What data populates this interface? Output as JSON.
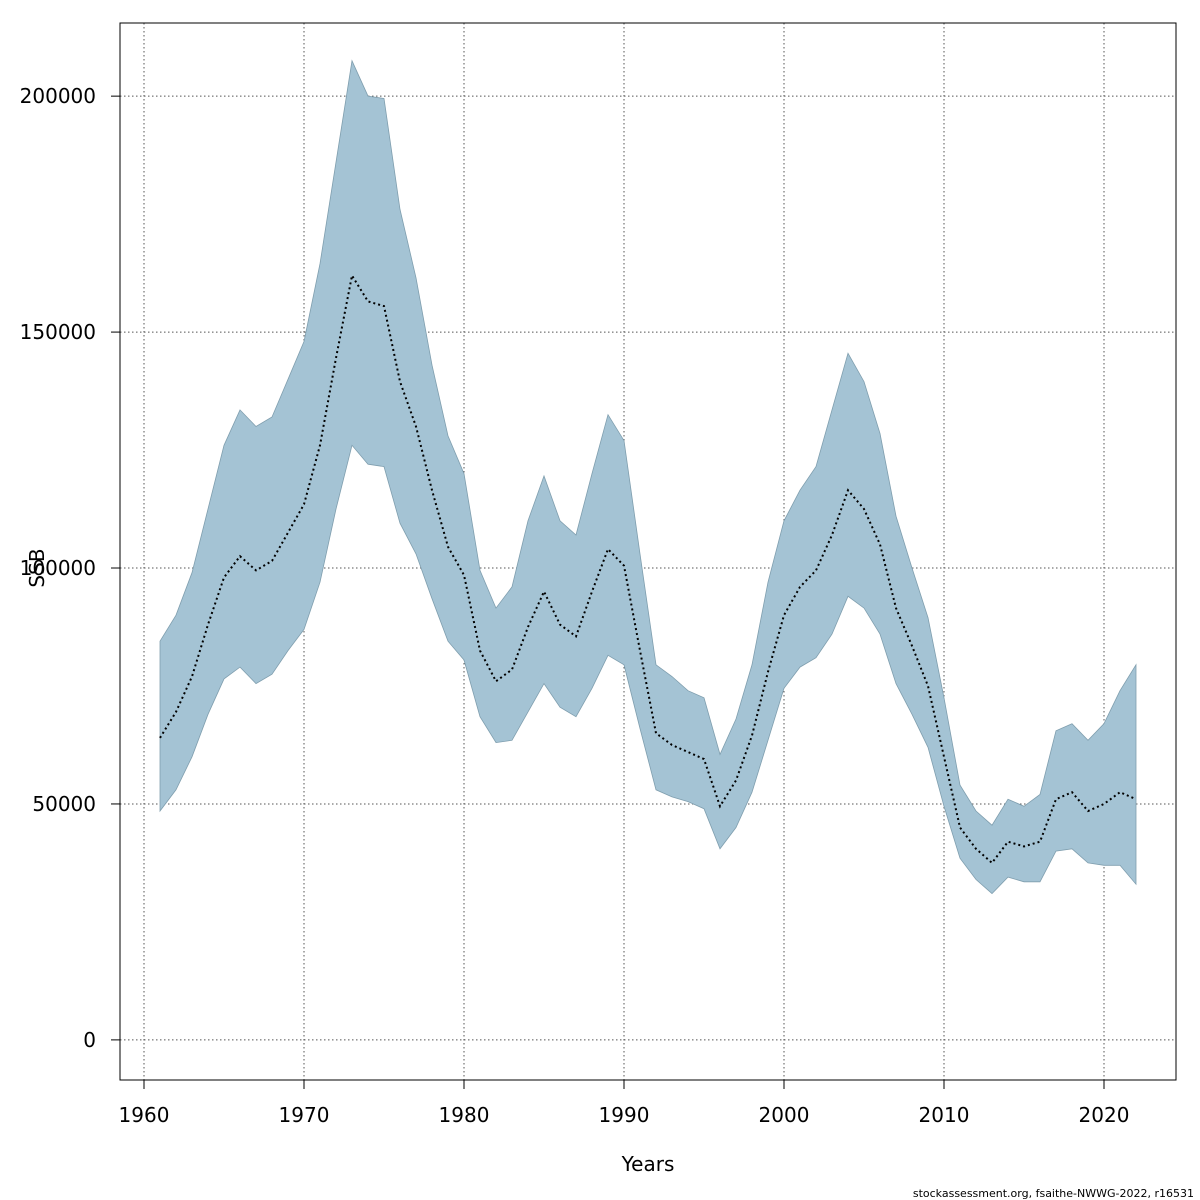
{
  "chart_data": {
    "type": "area",
    "xlabel": "Years",
    "ylabel": "SSB",
    "xlim": [
      1958.5,
      2024.5
    ],
    "ylim": [
      -8500,
      215500
    ],
    "xticks": [
      1960,
      1970,
      1980,
      1990,
      2000,
      2010,
      2020
    ],
    "yticks": [
      0,
      50000,
      100000,
      150000,
      200000
    ],
    "grid": true,
    "colors": {
      "band": "#a4c3d4",
      "band_edge": "#7f9eae",
      "line": "#000000",
      "grid": "#555555"
    },
    "x": [
      1961,
      1962,
      1963,
      1964,
      1965,
      1966,
      1967,
      1968,
      1969,
      1970,
      1971,
      1972,
      1973,
      1974,
      1975,
      1976,
      1977,
      1978,
      1979,
      1980,
      1981,
      1982,
      1983,
      1984,
      1985,
      1986,
      1987,
      1988,
      1989,
      1990,
      1991,
      1992,
      1993,
      1994,
      1995,
      1996,
      1997,
      1998,
      1999,
      2000,
      2001,
      2002,
      2003,
      2004,
      2005,
      2006,
      2007,
      2008,
      2009,
      2010,
      2011,
      2012,
      2013,
      2014,
      2015,
      2016,
      2017,
      2018,
      2019,
      2020,
      2021,
      2022
    ],
    "series": [
      {
        "values": [
          64000,
          69500,
          77000,
          88000,
          98000,
          102500,
          99500,
          101500,
          107500,
          113500,
          126000,
          144500,
          162000,
          156500,
          155500,
          139500,
          130000,
          116500,
          104500,
          98500,
          82500,
          76000,
          78500,
          87500,
          95000,
          88000,
          85500,
          95000,
          104000,
          100500,
          82500,
          65000,
          62500,
          61000,
          59500,
          49500,
          55000,
          64500,
          78000,
          90000,
          96000,
          99500,
          107000,
          116500,
          112500,
          105000,
          91500,
          83500,
          75000,
          60000,
          45000,
          40500,
          37500,
          42000,
          41000,
          42000,
          51000,
          52500,
          48500,
          50000,
          52500,
          51000
        ]
      }
    ],
    "band": {
      "upper": [
        84500,
        90000,
        99000,
        112500,
        126000,
        133500,
        130000,
        132000,
        140000,
        148000,
        164500,
        186000,
        207500,
        200000,
        199500,
        176000,
        161500,
        143000,
        128000,
        120000,
        99500,
        91500,
        96000,
        110000,
        119500,
        110000,
        107000,
        120000,
        132500,
        127000,
        103000,
        79500,
        77000,
        74000,
        72500,
        60500,
        68000,
        79500,
        97000,
        110000,
        116500,
        121500,
        133500,
        145500,
        139500,
        128500,
        111000,
        100000,
        89500,
        72500,
        54000,
        48500,
        45500,
        51000,
        49500,
        52000,
        65500,
        67000,
        63500,
        67000,
        74000,
        79500
      ],
      "lower": [
        48500,
        53000,
        60000,
        69000,
        76500,
        79000,
        75500,
        77500,
        82500,
        87000,
        97000,
        112500,
        126000,
        122000,
        121500,
        109500,
        103000,
        93500,
        84500,
        80500,
        68500,
        63000,
        63500,
        69500,
        75500,
        70500,
        68500,
        74500,
        81500,
        79500,
        66000,
        53000,
        51500,
        50500,
        49000,
        40500,
        45000,
        52500,
        63500,
        74500,
        79000,
        81000,
        86000,
        94000,
        91500,
        86000,
        75500,
        69000,
        62000,
        49500,
        38500,
        34000,
        31000,
        34500,
        33500,
        33500,
        40000,
        40500,
        37500,
        37000,
        37000,
        33000
      ]
    }
  },
  "footnote": "stockassessment.org, fsaithe-NWWG-2022, r16531"
}
